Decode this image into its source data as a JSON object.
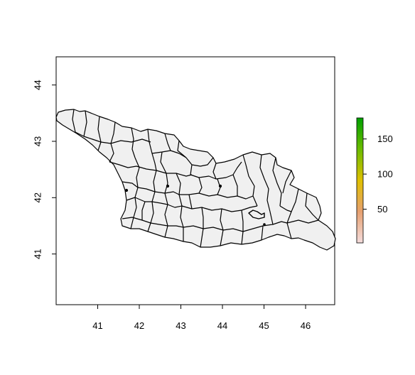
{
  "map": {
    "type": "choropleth",
    "region": "Georgia",
    "subdivision": "municipalities",
    "fill_color": "#f0f0f0",
    "border_color": "#000000",
    "x_axis": {
      "range": [
        40.0,
        46.7
      ],
      "ticks": [
        {
          "value": 41,
          "label": "41"
        },
        {
          "value": 42,
          "label": "42"
        },
        {
          "value": 43,
          "label": "43"
        },
        {
          "value": 44,
          "label": "44"
        },
        {
          "value": 45,
          "label": "45"
        },
        {
          "value": 46,
          "label": "46"
        }
      ]
    },
    "y_axis": {
      "range": [
        40.1,
        44.5
      ],
      "ticks": [
        {
          "value": 41,
          "label": "41"
        },
        {
          "value": 42,
          "label": "42"
        },
        {
          "value": 43,
          "label": "43"
        },
        {
          "value": 44,
          "label": "44"
        }
      ]
    },
    "colorbar": {
      "range": [
        2,
        180
      ],
      "ticks": [
        {
          "value": 50,
          "label": "50"
        },
        {
          "value": 100,
          "label": "100"
        },
        {
          "value": 150,
          "label": "150"
        }
      ],
      "colors": [
        "#f4dcdc",
        "#e6a070",
        "#e0c000",
        "#6cbc00",
        "#00a000"
      ]
    }
  }
}
